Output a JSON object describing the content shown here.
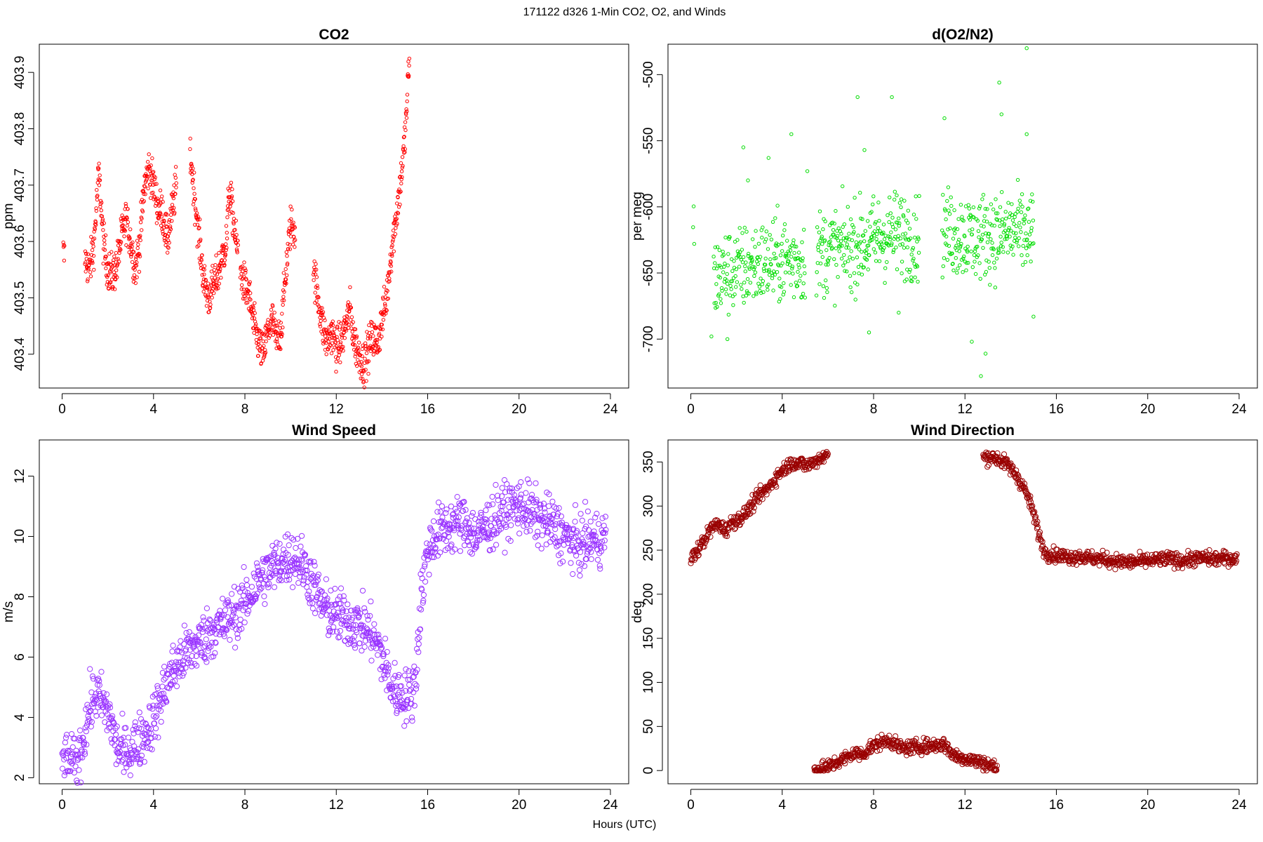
{
  "figure": {
    "title": "171122   d326   1-Min CO2, O2, and Winds",
    "xlabel": "Hours (UTC)"
  },
  "chart_data": [
    {
      "type": "scatter",
      "title": "CO2",
      "xlabel": "",
      "ylabel": "ppm",
      "xlim": [
        -1,
        24.8
      ],
      "ylim": [
        403.34,
        403.95
      ],
      "xticks": [
        0,
        4,
        8,
        12,
        16,
        20,
        24
      ],
      "yticks": [
        403.4,
        403.5,
        403.6,
        403.7,
        403.8,
        403.9
      ],
      "ytick_labels": [
        "403.4",
        "403.5",
        "403.6",
        "403.7",
        "403.8",
        "403.9"
      ],
      "color": "#ff0000",
      "marker_radius": 2.2,
      "segments": [
        {
          "x": [
            0.05,
            0.1,
            0.1
          ],
          "y": [
            403.58,
            403.57,
            403.69
          ]
        },
        {
          "x": [
            1.0,
            1.2,
            1.4,
            1.6,
            1.7,
            1.8,
            2.0,
            2.2,
            2.4,
            2.6,
            2.8,
            3.0,
            3.2,
            3.4,
            3.6,
            3.8,
            4.0,
            4.2,
            4.4,
            4.6,
            4.8,
            5.0
          ],
          "y": [
            403.57,
            403.55,
            403.6,
            403.72,
            403.67,
            403.6,
            403.55,
            403.54,
            403.56,
            403.61,
            403.64,
            403.6,
            403.55,
            403.6,
            403.7,
            403.73,
            403.7,
            403.66,
            403.65,
            403.6,
            403.65,
            403.7
          ]
        },
        {
          "x": [
            5.6,
            5.7,
            5.8,
            5.9,
            6.0,
            6.1,
            6.2,
            6.4,
            6.6,
            6.8,
            7.0,
            7.2,
            7.3,
            7.5,
            7.6,
            7.7
          ],
          "y": [
            403.76,
            403.72,
            403.68,
            403.64,
            403.6,
            403.57,
            403.53,
            403.5,
            403.52,
            403.54,
            403.57,
            403.6,
            403.69,
            403.64,
            403.6,
            403.58
          ]
        },
        {
          "x": [
            7.8,
            8.0,
            8.2,
            8.4,
            8.6,
            8.8,
            9.0,
            9.2,
            9.4,
            9.6,
            9.8,
            10.0,
            10.2
          ],
          "y": [
            403.55,
            403.52,
            403.5,
            403.45,
            403.42,
            403.4,
            403.44,
            403.46,
            403.42,
            403.45,
            403.55,
            403.63,
            403.62
          ]
        },
        {
          "x": [
            11.0,
            11.2,
            11.4,
            11.6,
            11.8,
            12.0,
            12.2,
            12.4,
            12.6,
            12.8,
            13.0,
            13.2,
            13.4,
            13.6,
            13.8,
            14.0,
            14.2,
            14.4,
            14.6,
            14.8,
            15.0,
            15.1,
            15.2
          ],
          "y": [
            403.55,
            403.5,
            403.45,
            403.42,
            403.44,
            403.41,
            403.42,
            403.45,
            403.48,
            403.42,
            403.4,
            403.38,
            403.41,
            403.43,
            403.42,
            403.46,
            403.5,
            403.58,
            403.64,
            403.7,
            403.78,
            403.85,
            403.93
          ]
        }
      ]
    },
    {
      "type": "scatter",
      "title": "d(O2/N2)",
      "xlabel": "",
      "ylabel": "per meg",
      "xlim": [
        -1,
        24.8
      ],
      "ylim": [
        -737,
        -477
      ],
      "xticks": [
        0,
        4,
        8,
        12,
        16,
        20,
        24
      ],
      "yticks": [
        -700,
        -650,
        -600,
        -550,
        -500
      ],
      "ytick_labels": [
        "-700",
        "-650",
        "-600",
        "-550",
        "-500"
      ],
      "color": "#00dd00",
      "marker_radius": 2.2,
      "segments": [
        {
          "x": [
            0.1,
            0.15
          ],
          "y": [
            -617,
            -622
          ]
        },
        {
          "x": [
            1.0,
            1.5,
            2.0,
            2.5,
            3.0,
            3.5,
            4.0,
            4.5,
            5.0
          ],
          "y": [
            -655,
            -650,
            -648,
            -645,
            -643,
            -642,
            -640,
            -641,
            -640
          ]
        },
        {
          "x": [
            5.5,
            6.0,
            6.5,
            7.0,
            7.5,
            8.0,
            8.5,
            9.0,
            9.5,
            10.0
          ],
          "y": [
            -635,
            -633,
            -632,
            -630,
            -628,
            -625,
            -622,
            -620,
            -622,
            -625
          ]
        },
        {
          "x": [
            11.0,
            11.5,
            12.0,
            12.5,
            13.0,
            13.5,
            14.0,
            14.5,
            15.0
          ],
          "y": [
            -618,
            -620,
            -622,
            -624,
            -620,
            -622,
            -618,
            -620,
            -622
          ]
        }
      ],
      "outliers": [
        [
          0.9,
          -698
        ],
        [
          1.6,
          -700
        ],
        [
          2.3,
          -555
        ],
        [
          2.5,
          -580
        ],
        [
          3.4,
          -563
        ],
        [
          4.4,
          -545
        ],
        [
          5.1,
          -573
        ],
        [
          7.3,
          -517
        ],
        [
          7.6,
          -557
        ],
        [
          8.8,
          -517
        ],
        [
          7.8,
          -695
        ],
        [
          9.1,
          -680
        ],
        [
          11.1,
          -533
        ],
        [
          12.3,
          -702
        ],
        [
          12.9,
          -711
        ],
        [
          12.7,
          -728
        ],
        [
          13.5,
          -506
        ],
        [
          13.6,
          -530
        ],
        [
          14.7,
          -480
        ],
        [
          14.7,
          -545
        ],
        [
          15.0,
          -683
        ]
      ]
    },
    {
      "type": "scatter",
      "title": "Wind Speed",
      "xlabel": "",
      "ylabel": "m/s",
      "xlim": [
        -1,
        24.8
      ],
      "ylim": [
        1.8,
        13.2
      ],
      "xticks": [
        0,
        4,
        8,
        12,
        16,
        20,
        24
      ],
      "yticks": [
        2,
        4,
        6,
        8,
        10,
        12
      ],
      "ytick_labels": [
        "2",
        "4",
        "6",
        "8",
        "10",
        "12"
      ],
      "color": "#9933ff",
      "marker_radius": 3.6,
      "segments": [
        {
          "x": [
            0.0,
            0.3,
            0.6,
            0.9,
            1.2,
            1.5,
            1.8,
            2.1,
            2.4,
            2.7,
            3.0,
            3.3,
            3.6,
            3.9,
            4.2,
            4.5,
            4.8,
            5.1,
            5.4,
            5.7,
            6.0,
            6.3,
            6.6,
            6.9,
            7.2,
            7.5,
            7.8,
            8.1,
            8.4,
            8.7,
            9.0,
            9.3,
            9.6,
            9.9,
            10.2,
            10.5,
            10.8,
            11.1,
            11.4,
            11.7,
            12.0,
            12.3,
            12.6,
            12.9,
            13.2,
            13.5,
            13.8,
            14.1,
            14.4,
            14.7,
            15.0,
            15.3,
            15.5,
            15.7,
            16.0,
            16.3,
            16.6,
            16.9,
            17.2,
            17.5,
            17.8,
            18.1,
            18.4,
            18.7,
            19.0,
            19.3,
            19.6,
            19.9,
            20.2,
            20.5,
            20.8,
            21.1,
            21.4,
            21.7,
            22.0,
            22.3,
            22.6,
            22.9,
            23.2,
            23.5,
            23.8
          ],
          "y": [
            2.6,
            2.5,
            2.4,
            3.2,
            4.3,
            4.8,
            4.4,
            4.0,
            3.0,
            2.8,
            2.9,
            3.2,
            3.4,
            3.8,
            4.3,
            5.0,
            5.5,
            5.8,
            6.1,
            6.3,
            6.5,
            6.7,
            6.9,
            7.0,
            7.2,
            7.4,
            7.6,
            7.9,
            8.3,
            8.6,
            8.8,
            9.0,
            9.2,
            9.3,
            9.3,
            9.1,
            8.7,
            8.2,
            7.7,
            7.5,
            7.3,
            7.3,
            7.2,
            7.1,
            7.0,
            6.8,
            6.4,
            5.8,
            5.0,
            4.8,
            4.7,
            4.7,
            5.5,
            8.0,
            9.5,
            10.0,
            10.2,
            10.3,
            10.4,
            10.5,
            10.3,
            10.0,
            10.2,
            10.4,
            10.6,
            10.8,
            10.9,
            11.0,
            11.0,
            10.8,
            10.6,
            10.5,
            10.4,
            10.2,
            10.0,
            9.8,
            9.7,
            9.8,
            9.9,
            9.9,
            10.0
          ]
        }
      ]
    },
    {
      "type": "scatter",
      "title": "Wind Direction",
      "xlabel": "",
      "ylabel": "deg",
      "xlim": [
        -1,
        24.8
      ],
      "ylim": [
        -15,
        375
      ],
      "xticks": [
        0,
        4,
        8,
        12,
        16,
        20,
        24
      ],
      "yticks": [
        0,
        50,
        100,
        150,
        200,
        250,
        300,
        350
      ],
      "ytick_labels": [
        "0",
        "50",
        "100",
        "150",
        "200",
        "250",
        "300",
        "350"
      ],
      "color": "#990000",
      "marker_radius": 3.6,
      "segments": [
        {
          "x": [
            0.0,
            0.3,
            0.6,
            0.9,
            1.2,
            1.5,
            1.8,
            2.1,
            2.4,
            2.7,
            3.0,
            3.3,
            3.6,
            3.9,
            4.2,
            4.5,
            4.8,
            5.1,
            5.4,
            5.7,
            6.0
          ],
          "y": [
            240,
            250,
            262,
            275,
            280,
            272,
            282,
            285,
            292,
            302,
            312,
            318,
            328,
            338,
            345,
            350,
            348,
            346,
            350,
            355,
            358
          ]
        },
        {
          "x": [
            5.4,
            5.7,
            6.0,
            6.3,
            6.6,
            6.9,
            7.2,
            7.5,
            7.8,
            8.1,
            8.4,
            8.7,
            9.0,
            9.3,
            9.6,
            9.9,
            10.2,
            10.5,
            10.8,
            11.1,
            11.4,
            11.7,
            12.0,
            12.3,
            12.6,
            12.9,
            13.2,
            13.4
          ],
          "y": [
            2,
            1,
            4,
            8,
            12,
            16,
            20,
            18,
            25,
            30,
            32,
            35,
            28,
            25,
            26,
            27,
            28,
            28,
            29,
            30,
            20,
            15,
            14,
            12,
            10,
            8,
            5,
            2
          ]
        },
        {
          "x": [
            12.8,
            13.1,
            13.4,
            13.7,
            14.0,
            14.3,
            14.6,
            14.9,
            15.1,
            15.3,
            15.5,
            15.8,
            16.1,
            16.5,
            17.0,
            17.5,
            18.0,
            18.5,
            19.0,
            19.5,
            20.0,
            20.5,
            21.0,
            21.5,
            22.0,
            22.5,
            23.0,
            23.5,
            23.9
          ],
          "y": [
            355,
            356,
            354,
            350,
            343,
            333,
            320,
            300,
            282,
            262,
            247,
            245,
            244,
            242,
            243,
            241,
            240,
            238,
            236,
            237,
            238,
            239,
            240,
            238,
            240,
            241,
            240,
            241,
            240
          ]
        }
      ]
    }
  ]
}
